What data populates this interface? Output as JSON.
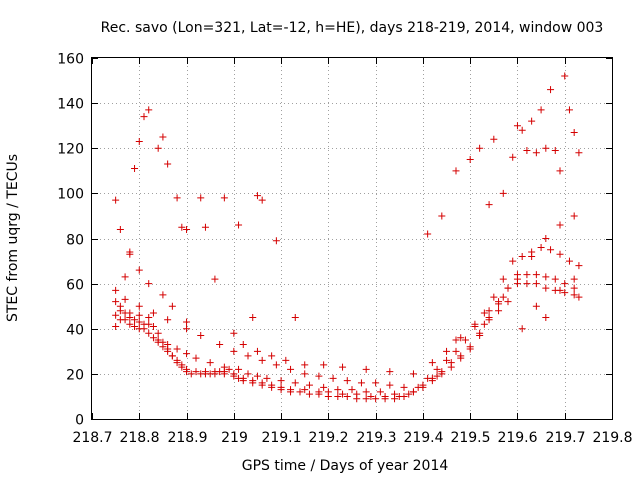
{
  "chart_data": {
    "type": "scatter",
    "title": "Rec. savo (Lon=321, Lat=-12, h=HE), days 218-219, 2014, window 003",
    "xlabel": "GPS time / Days of year 2014",
    "ylabel": "STEC from uqrg / TECUs",
    "xlim": [
      218.7,
      219.8
    ],
    "ylim": [
      0,
      160
    ],
    "grid": true,
    "marker": "plus",
    "color": "#d40000",
    "x_ticks": [
      "218.7",
      "218.8",
      "218.9",
      "219",
      "219.1",
      "219.2",
      "219.3",
      "219.4",
      "219.5",
      "219.6",
      "219.7",
      "219.8"
    ],
    "y_ticks": [
      "0",
      "20",
      "40",
      "60",
      "80",
      "100",
      "120",
      "140",
      "160"
    ],
    "x_tick_values": [
      218.7,
      218.8,
      218.9,
      219.0,
      219.1,
      219.2,
      219.3,
      219.4,
      219.5,
      219.6,
      219.7,
      219.8
    ],
    "y_tick_values": [
      0,
      20,
      40,
      60,
      80,
      100,
      120,
      140,
      160
    ],
    "series": [
      {
        "name": "STEC",
        "x": [
          218.75,
          218.75,
          218.75,
          218.75,
          218.76,
          218.76,
          218.77,
          218.78,
          218.79,
          218.8,
          218.81,
          218.82,
          218.83,
          218.84,
          218.85,
          218.86,
          218.87,
          218.88,
          218.89,
          218.9,
          218.91,
          218.93,
          218.94,
          218.95,
          218.96,
          218.97,
          218.98,
          218.99,
          219.0,
          219.01,
          219.02,
          219.04,
          219.06,
          219.08,
          219.1,
          219.12,
          219.15,
          219.18,
          219.2,
          219.23,
          219.26,
          219.29,
          219.32,
          219.35,
          219.38,
          219.4,
          219.42,
          219.44,
          219.46,
          219.48,
          219.5,
          219.52,
          219.54,
          219.56,
          219.58,
          219.6,
          219.62,
          219.64,
          219.66,
          219.68,
          219.7,
          219.72,
          219.73,
          218.77,
          218.78,
          218.79,
          218.8,
          218.81,
          218.82,
          218.83,
          218.84,
          218.85,
          218.86,
          218.87,
          218.88,
          218.89,
          218.9,
          218.92,
          218.94,
          218.96,
          218.98,
          219.0,
          219.02,
          219.04,
          219.06,
          219.08,
          219.1,
          219.12,
          219.14,
          219.16,
          219.18,
          219.2,
          219.22,
          219.24,
          219.26,
          219.28,
          219.3,
          219.32,
          219.34,
          219.36,
          219.38,
          219.4,
          219.42,
          219.44,
          219.46,
          219.48,
          219.5,
          219.52,
          219.54,
          219.56,
          219.58,
          219.6,
          219.62,
          219.64,
          219.66,
          219.68,
          219.7,
          219.72,
          218.76,
          218.78,
          218.8,
          218.82,
          218.84,
          218.86,
          218.88,
          218.9,
          218.92,
          218.95,
          218.98,
          219.01,
          219.03,
          219.05,
          219.07,
          219.1,
          219.13,
          219.16,
          219.19,
          219.22,
          219.25,
          219.28,
          219.31,
          219.34,
          219.37,
          219.41,
          219.43,
          219.45,
          219.47,
          219.49,
          219.51,
          219.53,
          219.55,
          219.57,
          219.59,
          219.61,
          219.63,
          219.65,
          219.67,
          219.69,
          219.71,
          219.73,
          218.77,
          218.8,
          218.83,
          218.86,
          218.9,
          218.93,
          218.97,
          219.0,
          219.03,
          219.06,
          219.09,
          219.12,
          219.15,
          219.18,
          219.21,
          219.24,
          219.27,
          219.3,
          219.33,
          219.36,
          219.39,
          219.42,
          219.45,
          219.48,
          219.51,
          219.54,
          219.57,
          219.6,
          219.63,
          219.66,
          219.69,
          219.72,
          218.75,
          218.76,
          218.77,
          218.78,
          218.79,
          218.8,
          218.81,
          218.82,
          218.84,
          218.85,
          218.86,
          218.88,
          218.89,
          218.9,
          218.93,
          218.94,
          218.96,
          218.98,
          219.01,
          219.04,
          219.05,
          219.06,
          219.09,
          219.13,
          219.41,
          219.44,
          219.47,
          219.5,
          219.52,
          219.54,
          219.55,
          219.57,
          219.59,
          219.6,
          219.61,
          219.62,
          219.63,
          219.64,
          219.65,
          219.66,
          219.67,
          219.68,
          219.69,
          219.7,
          219.71,
          219.72,
          219.73,
          218.78,
          218.8,
          218.82,
          218.85,
          218.87,
          218.9,
          219.0,
          219.02,
          219.05,
          219.08,
          219.11,
          219.15,
          219.19,
          219.23,
          219.28,
          219.33,
          219.38,
          219.43,
          219.47,
          219.53,
          219.56,
          219.58,
          219.61,
          219.64,
          219.66,
          219.69,
          219.72
        ],
        "y": [
          41,
          46,
          52,
          57,
          44,
          50,
          47,
          45,
          44,
          43,
          42,
          42,
          41,
          38,
          34,
          31,
          28,
          25,
          23,
          21,
          20,
          20,
          20,
          20,
          20,
          21,
          21,
          22,
          20,
          18,
          17,
          16,
          16,
          15,
          14,
          13,
          13,
          12,
          12,
          11,
          11,
          10,
          10,
          10,
          12,
          15,
          18,
          21,
          25,
          28,
          32,
          38,
          45,
          52,
          58,
          60,
          60,
          60,
          58,
          57,
          56,
          55,
          54,
          44,
          42,
          41,
          40,
          40,
          38,
          36,
          34,
          32,
          30,
          28,
          26,
          24,
          22,
          21,
          21,
          21,
          20,
          19,
          18,
          17,
          15,
          14,
          13,
          12,
          12,
          11,
          11,
          10,
          10,
          10,
          9,
          9,
          9,
          9,
          9,
          10,
          12,
          14,
          17,
          20,
          23,
          27,
          31,
          37,
          44,
          51,
          58,
          62,
          64,
          64,
          63,
          62,
          60,
          58,
          48,
          47,
          46,
          45,
          35,
          33,
          31,
          29,
          27,
          25,
          23,
          22,
          20,
          19,
          18,
          17,
          16,
          15,
          14,
          13,
          13,
          12,
          12,
          11,
          11,
          18,
          22,
          26,
          30,
          35,
          41,
          47,
          54,
          62,
          70,
          72,
          74,
          76,
          75,
          73,
          70,
          68,
          53,
          50,
          47,
          44,
          40,
          37,
          33,
          30,
          28,
          26,
          24,
          22,
          20,
          19,
          18,
          17,
          16,
          16,
          15,
          14,
          14,
          25,
          30,
          36,
          42,
          48,
          54,
          64,
          72,
          80,
          86,
          90,
          97,
          84,
          63,
          74,
          111,
          123,
          134,
          137,
          120,
          125,
          113,
          98,
          85,
          84,
          98,
          85,
          62,
          98,
          86,
          45,
          99,
          97,
          79,
          45,
          82,
          90,
          110,
          115,
          120,
          95,
          124,
          100,
          116,
          130,
          128,
          119,
          132,
          118,
          137,
          120,
          146,
          119,
          110,
          152,
          137,
          127,
          118,
          73,
          66,
          60,
          55,
          50,
          43,
          38,
          33,
          30,
          28,
          26,
          24,
          24,
          23,
          22,
          21,
          20,
          19,
          35,
          42,
          48,
          52,
          40,
          50,
          45,
          57,
          62
        ]
      }
    ]
  }
}
